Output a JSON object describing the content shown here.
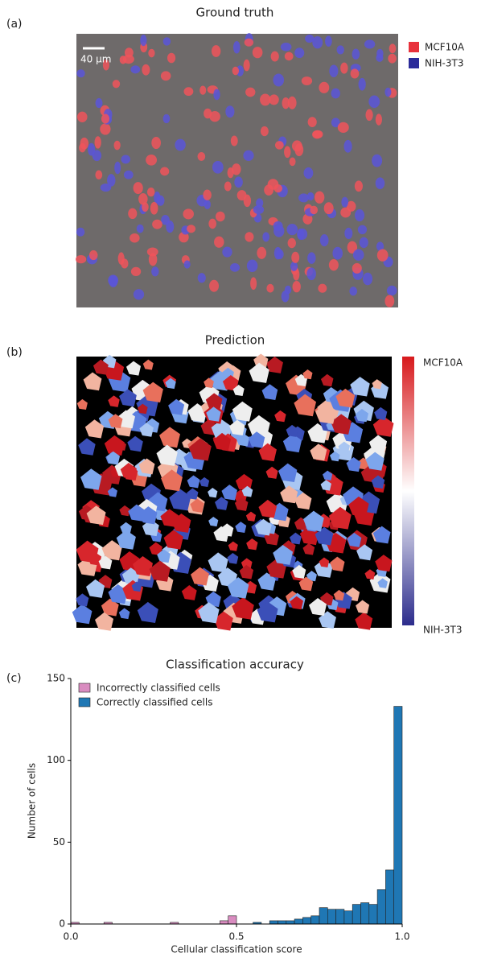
{
  "figure": {
    "panel_a": {
      "label": "(a)",
      "title": "Ground truth",
      "scale_bar": "40 µm",
      "legend": [
        {
          "name": "MCF10A",
          "color": "#e8323c"
        },
        {
          "name": "NIH-3T3",
          "color": "#2b2b9a"
        }
      ]
    },
    "panel_b": {
      "label": "(b)",
      "title": "Prediction",
      "colorbar_top": "MCF10A",
      "colorbar_bottom": "NIH-3T3"
    },
    "panel_c": {
      "label": "(c)"
    }
  },
  "chart_data": {
    "type": "histogram",
    "title": "Classification accuracy",
    "xlabel": "Cellular classification score",
    "ylabel": "Number of cells",
    "bins": [
      0,
      0.025,
      0.05,
      0.075,
      0.1,
      0.125,
      0.15,
      0.175,
      0.2,
      0.225,
      0.25,
      0.275,
      0.3,
      0.325,
      0.35,
      0.375,
      0.4,
      0.425,
      0.45,
      0.475,
      0.5,
      0.525,
      0.55,
      0.575,
      0.6,
      0.625,
      0.65,
      0.675,
      0.7,
      0.725,
      0.75,
      0.775,
      0.8,
      0.825,
      0.85,
      0.875,
      0.9,
      0.925,
      0.95,
      0.975,
      1.0
    ],
    "series": [
      {
        "name": "Incorrectly classified cells",
        "color": "#d98cc0",
        "values": [
          1,
          0,
          0,
          0,
          1,
          0,
          0,
          0,
          0,
          0,
          0,
          0,
          1,
          0,
          0,
          0,
          0,
          0,
          2,
          5,
          0,
          0,
          0,
          0,
          0,
          0,
          0,
          0,
          0,
          0,
          0,
          0,
          0,
          0,
          0,
          0,
          0,
          0,
          0,
          0
        ]
      },
      {
        "name": "Correctly classified cells",
        "color": "#1f77b4",
        "values": [
          0,
          0,
          0,
          0,
          0,
          0,
          0,
          0,
          0,
          0,
          0,
          0,
          0,
          0,
          0,
          0,
          0,
          0,
          0,
          0,
          0,
          0,
          1,
          0,
          2,
          2,
          2,
          3,
          4,
          5,
          10,
          9,
          9,
          8,
          12,
          13,
          12,
          21,
          33,
          133
        ]
      }
    ],
    "xlim": [
      0,
      1
    ],
    "ylim": [
      0,
      150
    ],
    "xticks": [
      {
        "value": 0,
        "label": "0.0"
      },
      {
        "value": 0.5,
        "label": "0.5"
      },
      {
        "value": 1,
        "label": "1.0"
      }
    ],
    "yticks": [
      0,
      50,
      100,
      150
    ],
    "legend": "upper left"
  }
}
